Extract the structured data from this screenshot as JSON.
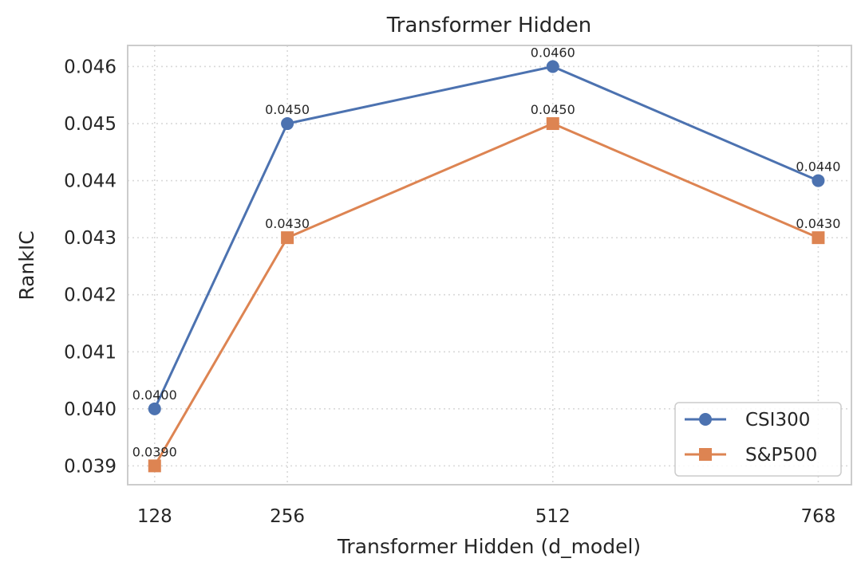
{
  "chart_data": {
    "type": "line",
    "title": "Transformer Hidden",
    "xlabel": "Transformer Hidden (d_model)",
    "ylabel": "RankIC",
    "x": [
      128,
      256,
      512,
      768
    ],
    "x_tick_labels": [
      "128",
      "256",
      "512",
      "768"
    ],
    "y_ticks": [
      0.039,
      0.04,
      0.041,
      0.042,
      0.043,
      0.044,
      0.045,
      0.046
    ],
    "y_tick_labels": [
      "0.039",
      "0.040",
      "0.041",
      "0.042",
      "0.043",
      "0.044",
      "0.045",
      "0.046"
    ],
    "xlim": [
      102,
      800
    ],
    "ylim": [
      0.03867,
      0.04637
    ],
    "grid": true,
    "legend_position": "lower-right",
    "series": [
      {
        "name": "CSI300",
        "marker": "circle",
        "color": "#4c72b0",
        "values": [
          0.04,
          0.045,
          0.046,
          0.044
        ],
        "labels": [
          "0.0400",
          "0.0450",
          "0.0460",
          "0.0440"
        ]
      },
      {
        "name": "S&P500",
        "marker": "square",
        "color": "#dd8452",
        "values": [
          0.039,
          0.043,
          0.045,
          0.043
        ],
        "labels": [
          "0.0390",
          "0.0430",
          "0.0450",
          "0.0430"
        ]
      }
    ]
  }
}
